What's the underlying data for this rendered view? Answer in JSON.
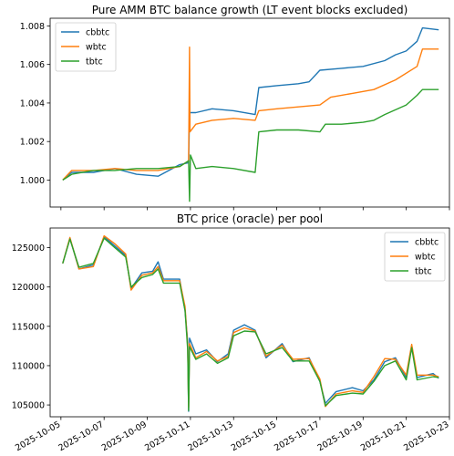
{
  "chart_data": [
    {
      "type": "line",
      "title": "Pure AMM BTC balance growth (LT event blocks excluded)",
      "xlabel": "",
      "ylabel": "",
      "x_axis": "date",
      "xlim": [
        "2025-10-04T12:00",
        "2025-10-23T00:00"
      ],
      "ylim": [
        0.9986,
        1.0084
      ],
      "yticks": [
        1.0,
        1.002,
        1.004,
        1.006,
        1.008
      ],
      "ytick_labels": [
        "1.000",
        "1.002",
        "1.004",
        "1.006",
        "1.008"
      ],
      "legend_position": "upper left",
      "grid": false,
      "series": [
        {
          "name": "cbbtc",
          "color": "#1f77b4",
          "points": [
            [
              "2025-10-05T02:00",
              1.0
            ],
            [
              "2025-10-05T12:00",
              1.0004
            ],
            [
              "2025-10-06T12:00",
              1.0004
            ],
            [
              "2025-10-07T12:00",
              1.0006
            ],
            [
              "2025-10-08T12:00",
              1.0003
            ],
            [
              "2025-10-09T12:00",
              1.0002
            ],
            [
              "2025-10-10T12:00",
              1.0008
            ],
            [
              "2025-10-10T22:00",
              1.0009
            ],
            [
              "2025-10-10T23:00",
              1.0035
            ],
            [
              "2025-10-11T06:00",
              1.0035
            ],
            [
              "2025-10-12T00:00",
              1.0037
            ],
            [
              "2025-10-13T00:00",
              1.0036
            ],
            [
              "2025-10-14T00:00",
              1.0034
            ],
            [
              "2025-10-14T04:00",
              1.0048
            ],
            [
              "2025-10-15T00:00",
              1.0049
            ],
            [
              "2025-10-16T00:00",
              1.005
            ],
            [
              "2025-10-16T12:00",
              1.0051
            ],
            [
              "2025-10-17T00:00",
              1.0057
            ],
            [
              "2025-10-18T00:00",
              1.0058
            ],
            [
              "2025-10-19T00:00",
              1.0059
            ],
            [
              "2025-10-20T00:00",
              1.0062
            ],
            [
              "2025-10-20T12:00",
              1.0065
            ],
            [
              "2025-10-21T00:00",
              1.0067
            ],
            [
              "2025-10-21T12:00",
              1.0072
            ],
            [
              "2025-10-21T18:00",
              1.0079
            ],
            [
              "2025-10-22T12:00",
              1.0078
            ]
          ]
        },
        {
          "name": "wbtc",
          "color": "#ff7f0e",
          "points": [
            [
              "2025-10-05T02:00",
              1.0
            ],
            [
              "2025-10-05T12:00",
              1.0005
            ],
            [
              "2025-10-06T12:00",
              1.0005
            ],
            [
              "2025-10-07T12:00",
              1.0006
            ],
            [
              "2025-10-08T12:00",
              1.0005
            ],
            [
              "2025-10-09T12:00",
              1.0005
            ],
            [
              "2025-10-10T12:00",
              1.0007
            ],
            [
              "2025-10-10T22:00",
              1.001
            ],
            [
              "2025-10-10T23:00",
              1.0069
            ],
            [
              "2025-10-10T23:30",
              1.0025
            ],
            [
              "2025-10-11T06:00",
              1.0029
            ],
            [
              "2025-10-12T00:00",
              1.0031
            ],
            [
              "2025-10-13T00:00",
              1.0032
            ],
            [
              "2025-10-14T00:00",
              1.0031
            ],
            [
              "2025-10-14T04:00",
              1.0036
            ],
            [
              "2025-10-15T00:00",
              1.0037
            ],
            [
              "2025-10-16T00:00",
              1.0038
            ],
            [
              "2025-10-17T00:00",
              1.0039
            ],
            [
              "2025-10-17T12:00",
              1.0043
            ],
            [
              "2025-10-18T12:00",
              1.0045
            ],
            [
              "2025-10-19T12:00",
              1.0047
            ],
            [
              "2025-10-20T12:00",
              1.0052
            ],
            [
              "2025-10-21T12:00",
              1.0059
            ],
            [
              "2025-10-21T18:00",
              1.0068
            ],
            [
              "2025-10-22T12:00",
              1.0068
            ]
          ]
        },
        {
          "name": "tbtc",
          "color": "#2ca02c",
          "points": [
            [
              "2025-10-05T02:00",
              1.0
            ],
            [
              "2025-10-05T12:00",
              1.0003
            ],
            [
              "2025-10-06T12:00",
              1.0005
            ],
            [
              "2025-10-07T12:00",
              1.0005
            ],
            [
              "2025-10-08T12:00",
              1.0006
            ],
            [
              "2025-10-09T12:00",
              1.0006
            ],
            [
              "2025-10-10T12:00",
              1.0007
            ],
            [
              "2025-10-10T22:00",
              1.001
            ],
            [
              "2025-10-10T23:00",
              0.9989
            ],
            [
              "2025-10-11T00:00",
              1.0013
            ],
            [
              "2025-10-11T06:00",
              1.0006
            ],
            [
              "2025-10-12T00:00",
              1.0007
            ],
            [
              "2025-10-13T00:00",
              1.0006
            ],
            [
              "2025-10-14T00:00",
              1.0004
            ],
            [
              "2025-10-14T04:00",
              1.0025
            ],
            [
              "2025-10-15T00:00",
              1.0026
            ],
            [
              "2025-10-16T00:00",
              1.0026
            ],
            [
              "2025-10-17T00:00",
              1.0025
            ],
            [
              "2025-10-17T06:00",
              1.0029
            ],
            [
              "2025-10-18T00:00",
              1.0029
            ],
            [
              "2025-10-19T00:00",
              1.003
            ],
            [
              "2025-10-19T12:00",
              1.0031
            ],
            [
              "2025-10-20T00:00",
              1.0034
            ],
            [
              "2025-10-21T00:00",
              1.0039
            ],
            [
              "2025-10-21T12:00",
              1.0044
            ],
            [
              "2025-10-21T18:00",
              1.0047
            ],
            [
              "2025-10-22T12:00",
              1.0047
            ]
          ]
        }
      ]
    },
    {
      "type": "line",
      "title": "BTC price (oracle) per pool",
      "xlabel": "",
      "ylabel": "",
      "x_axis": "date",
      "xlim": [
        "2025-10-04T12:00",
        "2025-10-23T00:00"
      ],
      "ylim": [
        103500,
        127500
      ],
      "yticks": [
        105000,
        110000,
        115000,
        120000,
        125000
      ],
      "ytick_labels": [
        "105000",
        "110000",
        "115000",
        "120000",
        "125000"
      ],
      "xticks": [
        "2025-10-05",
        "2025-10-07",
        "2025-10-09",
        "2025-10-11",
        "2025-10-13",
        "2025-10-15",
        "2025-10-17",
        "2025-10-19",
        "2025-10-21",
        "2025-10-23"
      ],
      "xtick_labels": [
        "2025-10-05",
        "2025-10-07",
        "2025-10-09",
        "2025-10-11",
        "2025-10-13",
        "2025-10-15",
        "2025-10-17",
        "2025-10-19",
        "2025-10-21",
        "2025-10-23"
      ],
      "legend_position": "upper right",
      "grid": false,
      "series": [
        {
          "name": "cbbtc",
          "color": "#1f77b4",
          "points": [
            [
              "2025-10-05T02:00",
              123000
            ],
            [
              "2025-10-05T10:00",
              126200
            ],
            [
              "2025-10-05T20:00",
              122300
            ],
            [
              "2025-10-06T12:00",
              122800
            ],
            [
              "2025-10-07T00:00",
              126400
            ],
            [
              "2025-10-07T12:00",
              125200
            ],
            [
              "2025-10-08T00:00",
              124000
            ],
            [
              "2025-10-08T06:00",
              119800
            ],
            [
              "2025-10-08T18:00",
              121800
            ],
            [
              "2025-10-09T06:00",
              122000
            ],
            [
              "2025-10-09T12:00",
              123200
            ],
            [
              "2025-10-09T18:00",
              121000
            ],
            [
              "2025-10-10T12:00",
              121000
            ],
            [
              "2025-10-10T18:00",
              117000
            ],
            [
              "2025-10-10T21:00",
              113000
            ],
            [
              "2025-10-10T22:00",
              104200
            ],
            [
              "2025-10-10T23:00",
              113500
            ],
            [
              "2025-10-11T06:00",
              111500
            ],
            [
              "2025-10-11T18:00",
              112000
            ],
            [
              "2025-10-12T06:00",
              110500
            ],
            [
              "2025-10-12T18:00",
              111500
            ],
            [
              "2025-10-13T00:00",
              114500
            ],
            [
              "2025-10-13T12:00",
              115200
            ],
            [
              "2025-10-14T00:00",
              114500
            ],
            [
              "2025-10-14T12:00",
              111000
            ],
            [
              "2025-10-15T06:00",
              112800
            ],
            [
              "2025-10-15T18:00",
              110500
            ],
            [
              "2025-10-16T12:00",
              111000
            ],
            [
              "2025-10-17T00:00",
              108000
            ],
            [
              "2025-10-17T06:00",
              105200
            ],
            [
              "2025-10-17T18:00",
              106700
            ],
            [
              "2025-10-18T12:00",
              107200
            ],
            [
              "2025-10-19T00:00",
              106800
            ],
            [
              "2025-10-19T12:00",
              108200
            ],
            [
              "2025-10-20T00:00",
              110500
            ],
            [
              "2025-10-20T12:00",
              111000
            ],
            [
              "2025-10-21T00:00",
              108500
            ],
            [
              "2025-10-21T06:00",
              112500
            ],
            [
              "2025-10-21T12:00",
              108500
            ],
            [
              "2025-10-22T06:00",
              109000
            ],
            [
              "2025-10-22T12:00",
              108400
            ]
          ]
        },
        {
          "name": "wbtc",
          "color": "#ff7f0e",
          "points": [
            [
              "2025-10-05T02:00",
              123000
            ],
            [
              "2025-10-05T10:00",
              126300
            ],
            [
              "2025-10-05T20:00",
              122300
            ],
            [
              "2025-10-06T12:00",
              122600
            ],
            [
              "2025-10-07T00:00",
              126500
            ],
            [
              "2025-10-07T12:00",
              125500
            ],
            [
              "2025-10-08T00:00",
              124200
            ],
            [
              "2025-10-08T06:00",
              119600
            ],
            [
              "2025-10-08T18:00",
              121500
            ],
            [
              "2025-10-09T06:00",
              121800
            ],
            [
              "2025-10-09T12:00",
              122600
            ],
            [
              "2025-10-09T18:00",
              120800
            ],
            [
              "2025-10-10T12:00",
              120800
            ],
            [
              "2025-10-10T18:00",
              117500
            ],
            [
              "2025-10-10T21:00",
              112500
            ],
            [
              "2025-10-10T22:00",
              104700
            ],
            [
              "2025-10-10T23:00",
              112800
            ],
            [
              "2025-10-11T06:00",
              111000
            ],
            [
              "2025-10-11T18:00",
              111800
            ],
            [
              "2025-10-12T06:00",
              110600
            ],
            [
              "2025-10-12T18:00",
              111200
            ],
            [
              "2025-10-13T00:00",
              114200
            ],
            [
              "2025-10-13T12:00",
              114800
            ],
            [
              "2025-10-14T00:00",
              114400
            ],
            [
              "2025-10-14T12:00",
              111200
            ],
            [
              "2025-10-15T06:00",
              112600
            ],
            [
              "2025-10-15T18:00",
              110800
            ],
            [
              "2025-10-16T12:00",
              110900
            ],
            [
              "2025-10-17T00:00",
              108300
            ],
            [
              "2025-10-17T06:00",
              104800
            ],
            [
              "2025-10-17T18:00",
              106400
            ],
            [
              "2025-10-18T12:00",
              106800
            ],
            [
              "2025-10-19T00:00",
              106600
            ],
            [
              "2025-10-19T12:00",
              108600
            ],
            [
              "2025-10-20T00:00",
              110900
            ],
            [
              "2025-10-20T12:00",
              110800
            ],
            [
              "2025-10-21T00:00",
              108800
            ],
            [
              "2025-10-21T06:00",
              112700
            ],
            [
              "2025-10-21T12:00",
              108800
            ],
            [
              "2025-10-22T06:00",
              108800
            ],
            [
              "2025-10-22T12:00",
              108600
            ]
          ]
        },
        {
          "name": "tbtc",
          "color": "#2ca02c",
          "points": [
            [
              "2025-10-05T02:00",
              123000
            ],
            [
              "2025-10-05T10:00",
              126100
            ],
            [
              "2025-10-05T20:00",
              122500
            ],
            [
              "2025-10-06T12:00",
              123000
            ],
            [
              "2025-10-07T00:00",
              126200
            ],
            [
              "2025-10-07T12:00",
              125000
            ],
            [
              "2025-10-08T00:00",
              123800
            ],
            [
              "2025-10-08T06:00",
              120000
            ],
            [
              "2025-10-08T18:00",
              121200
            ],
            [
              "2025-10-09T06:00",
              121600
            ],
            [
              "2025-10-09T12:00",
              122300
            ],
            [
              "2025-10-09T18:00",
              120500
            ],
            [
              "2025-10-10T12:00",
              120500
            ],
            [
              "2025-10-10T18:00",
              117000
            ],
            [
              "2025-10-10T21:00",
              112000
            ],
            [
              "2025-10-10T22:00",
              104300
            ],
            [
              "2025-10-10T23:00",
              112400
            ],
            [
              "2025-10-11T06:00",
              110800
            ],
            [
              "2025-10-11T18:00",
              111500
            ],
            [
              "2025-10-12T06:00",
              110300
            ],
            [
              "2025-10-12T18:00",
              111000
            ],
            [
              "2025-10-13T00:00",
              113800
            ],
            [
              "2025-10-13T12:00",
              114400
            ],
            [
              "2025-10-14T00:00",
              114300
            ],
            [
              "2025-10-14T12:00",
              111500
            ],
            [
              "2025-10-15T06:00",
              112300
            ],
            [
              "2025-10-15T18:00",
              110600
            ],
            [
              "2025-10-16T12:00",
              110600
            ],
            [
              "2025-10-17T00:00",
              108000
            ],
            [
              "2025-10-17T06:00",
              104900
            ],
            [
              "2025-10-17T18:00",
              106200
            ],
            [
              "2025-10-18T12:00",
              106500
            ],
            [
              "2025-10-19T00:00",
              106400
            ],
            [
              "2025-10-19T12:00",
              108000
            ],
            [
              "2025-10-20T00:00",
              110000
            ],
            [
              "2025-10-20T12:00",
              110600
            ],
            [
              "2025-10-21T00:00",
              108200
            ],
            [
              "2025-10-21T06:00",
              112300
            ],
            [
              "2025-10-21T12:00",
              108200
            ],
            [
              "2025-10-22T06:00",
              108600
            ],
            [
              "2025-10-22T12:00",
              108500
            ]
          ]
        }
      ]
    }
  ]
}
